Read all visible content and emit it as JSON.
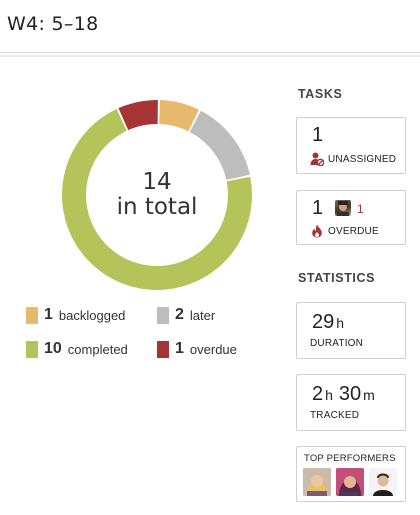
{
  "header": {
    "title": "W4: 5–18"
  },
  "chart_data": {
    "type": "pie",
    "categories": [
      "backlogged",
      "later",
      "completed",
      "overdue"
    ],
    "values": [
      1,
      2,
      10,
      1
    ],
    "colors": [
      "#e7b96e",
      "#bdbdbd",
      "#b5c35b",
      "#a73435"
    ],
    "center_line1": "14",
    "center_line2": "in total",
    "legend": [
      {
        "count": "1",
        "label": "backlogged",
        "color": "#e7b96e"
      },
      {
        "count": "2",
        "label": "later",
        "color": "#bdbdbd"
      },
      {
        "count": "10",
        "label": "completed",
        "color": "#b5c35b"
      },
      {
        "count": "1",
        "label": "overdue",
        "color": "#a73435"
      }
    ]
  },
  "tasks": {
    "title": "TASKS",
    "unassigned": {
      "value": "1",
      "label": "UNASSIGNED"
    },
    "overdue": {
      "value": "1",
      "avatar_count": "1",
      "label": "OVERDUE"
    }
  },
  "statistics": {
    "title": "STATISTICS",
    "duration": {
      "value": "29",
      "unit": "h",
      "label": "DURATION"
    },
    "tracked": {
      "hours": "2",
      "hours_unit": "h",
      "minutes": "30",
      "minutes_unit": "m",
      "label": "TRACKED"
    },
    "top_performers": {
      "label": "TOP PERFORMERS"
    }
  },
  "icons": {
    "unassigned": "user-cancel-icon",
    "overdue": "flame-icon"
  }
}
